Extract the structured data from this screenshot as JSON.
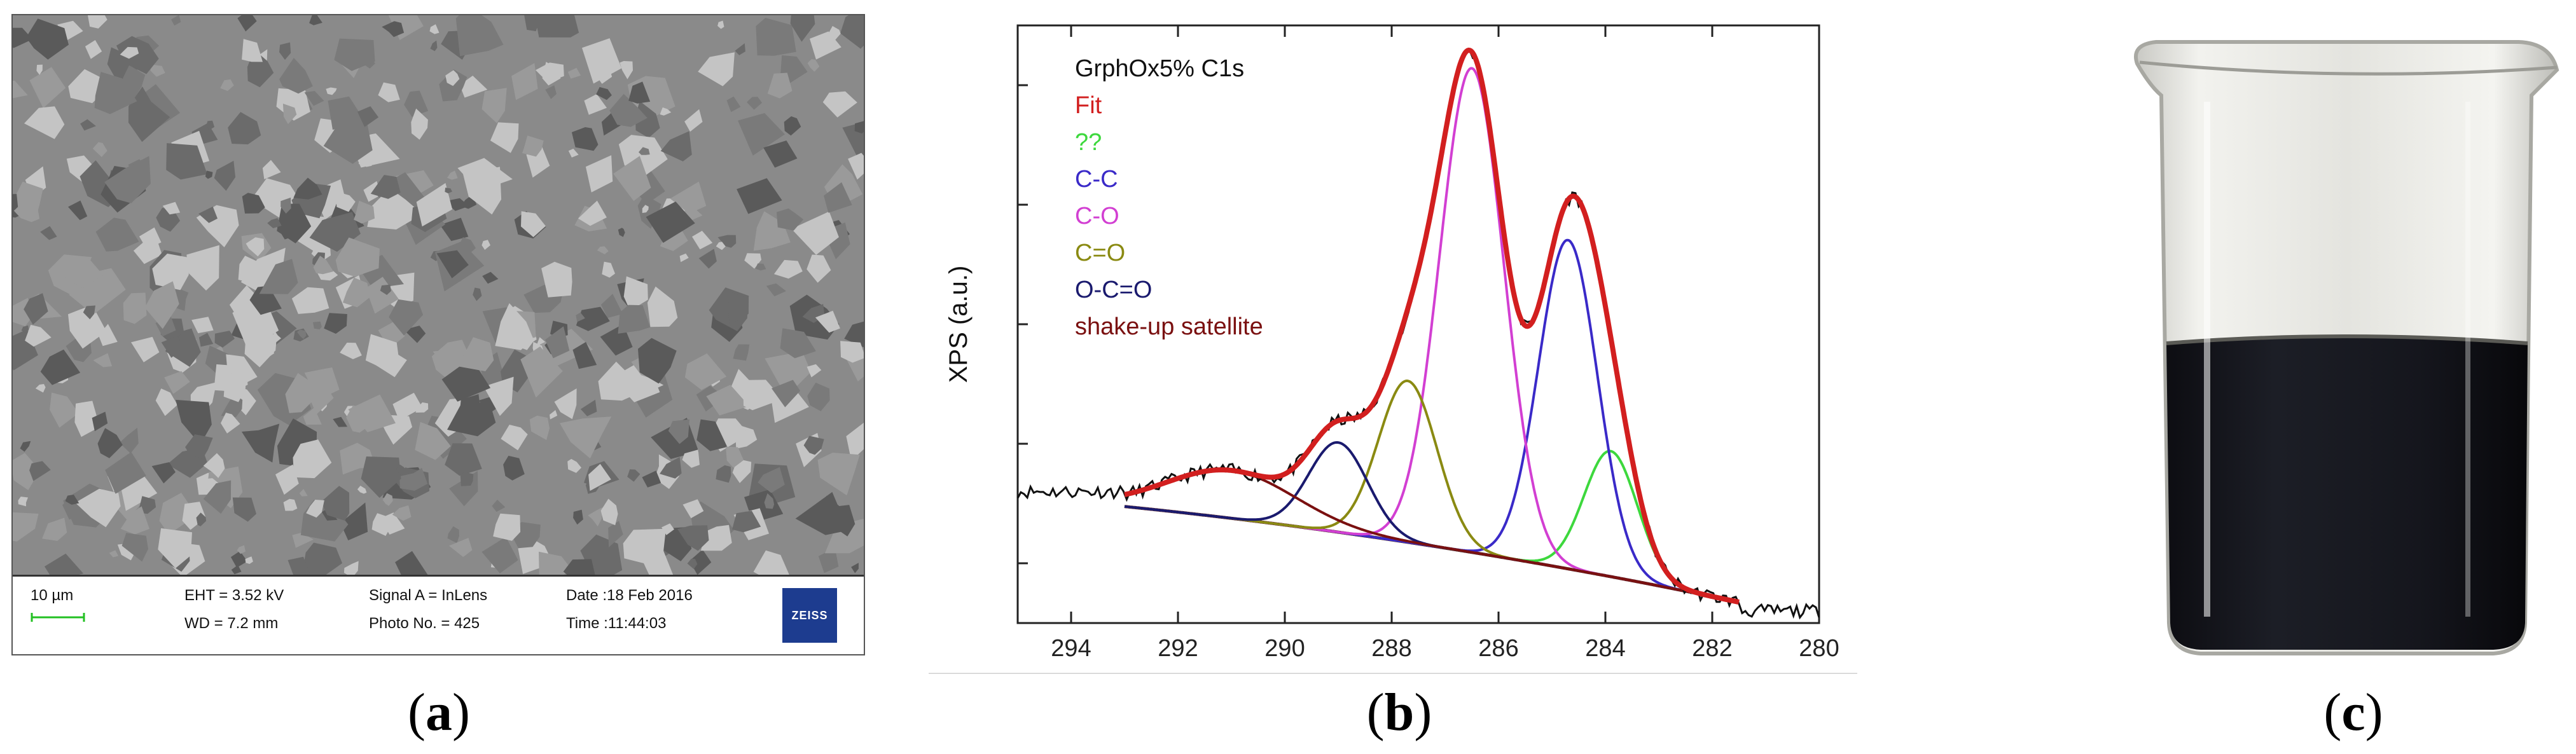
{
  "panel_a": {
    "caption": "a",
    "scale_label": "10 µm",
    "eht": "EHT =  3.52 kV",
    "wd": "WD =  7.2 mm",
    "signal": "Signal A = InLens",
    "photo_no": "Photo No. = 425",
    "date": "Date :18 Feb 2016",
    "time": "Time :11:44:03",
    "logo": "ZEISS",
    "colors": {
      "bg": "#8a8a8a",
      "light": "#c4c4c4",
      "dark": "#5a5a5a",
      "scale": "#22c022"
    }
  },
  "panel_b": {
    "caption": "b"
  },
  "panel_c": {
    "caption": "c"
  },
  "chart_data": {
    "type": "line",
    "title": "",
    "xlabel": "",
    "ylabel": "XPS (a.u.)",
    "xlim": [
      295,
      280
    ],
    "ylim": [
      0,
      100
    ],
    "x_ticks": [
      294,
      292,
      290,
      288,
      286,
      284,
      282,
      280
    ],
    "legend": [
      {
        "label": "GrphOx5% C1s",
        "color": "#111111"
      },
      {
        "label": "Fit",
        "color": "#d21f1f"
      },
      {
        "label": "??",
        "color": "#3dd83d"
      },
      {
        "label": "C-C",
        "color": "#3a2ac8"
      },
      {
        "label": "C-O",
        "color": "#d23fd2"
      },
      {
        "label": "C=O",
        "color": "#8a8a12"
      },
      {
        "label": "O-C=O",
        "color": "#1a1a6e"
      },
      {
        "label": "shake-up satellite",
        "color": "#7a1010"
      }
    ],
    "legend_position": "top-left",
    "background": {
      "start": 293,
      "end": 281.5,
      "y_start": 19.5,
      "y_end": 3.5
    },
    "components": [
      {
        "name": "??",
        "center": 283.9,
        "height": 21,
        "width": 0.5,
        "color": "#3dd83d"
      },
      {
        "name": "C-C",
        "center": 284.7,
        "height": 55,
        "width": 0.55,
        "color": "#3a2ac8"
      },
      {
        "name": "C-O",
        "center": 286.5,
        "height": 81,
        "width": 0.6,
        "color": "#d23fd2"
      },
      {
        "name": "C=O",
        "center": 287.7,
        "height": 27,
        "width": 0.55,
        "color": "#8a8a12"
      },
      {
        "name": "O-C=O",
        "center": 289.0,
        "height": 15,
        "width": 0.55,
        "color": "#1a1a6e"
      },
      {
        "name": "shake-up satellite",
        "center": 291.0,
        "height": 8,
        "width": 1.2,
        "color": "#7a1010"
      }
    ],
    "raw_data": {
      "x_start": 295,
      "x_end": 280,
      "baseline_left": 22,
      "baseline_right": 2
    },
    "y_ticks": [
      10,
      30,
      50,
      70,
      90
    ]
  }
}
